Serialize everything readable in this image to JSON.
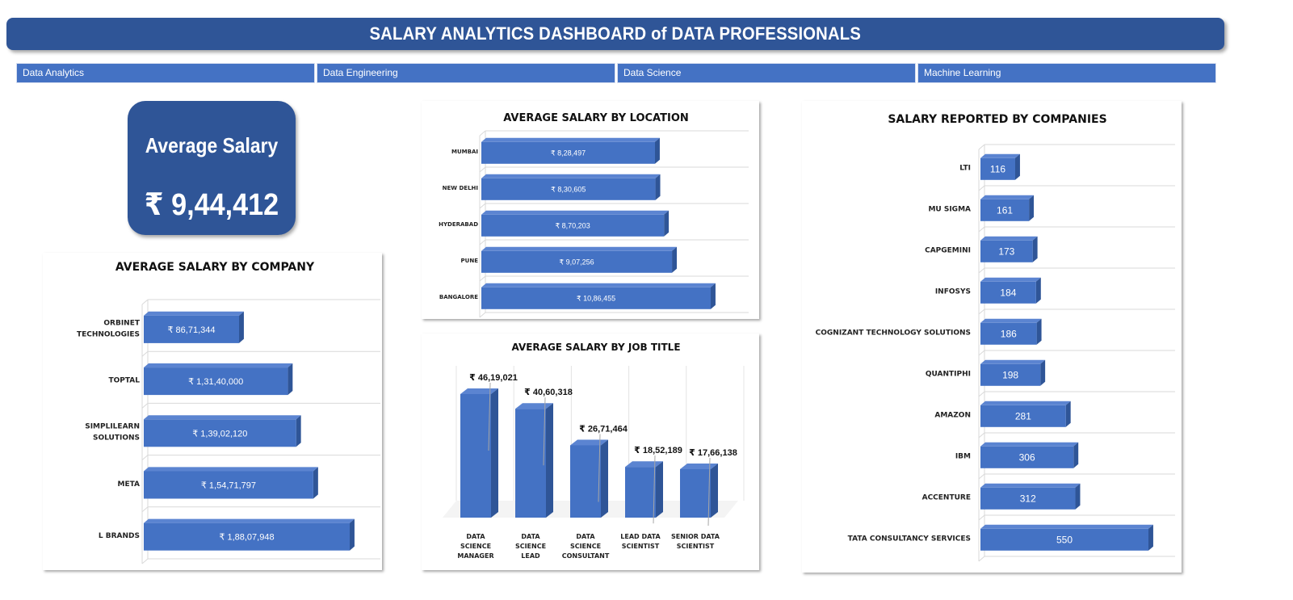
{
  "header": {
    "title": "SALARY ANALYTICS DASHBOARD of DATA PROFESSIONALS"
  },
  "slicers": [
    "Data Analytics",
    "Data Engineering",
    "Data Science",
    "Machine Learning"
  ],
  "kpi": {
    "label": "Average Salary",
    "value": "₹ 9,44,412"
  },
  "colors": {
    "bar": "#4472c4",
    "bar_top": "#5b84d1",
    "bar_side": "#2f5597",
    "header": "#2f5597"
  },
  "chart_data": [
    {
      "id": "by_company",
      "type": "bar",
      "orientation": "horizontal",
      "title": "AVERAGE SALARY BY COMPANY",
      "categories": [
        "ORBINET TECHNOLOGIES",
        "TOPTAL",
        "SIMPLILEARN SOLUTIONS",
        "META",
        "L BRANDS"
      ],
      "values": [
        8671344,
        13140000,
        13902120,
        15471797,
        18807948
      ],
      "labels": [
        "₹ 86,71,344",
        "₹ 1,31,40,000",
        "₹ 1,39,02,120",
        "₹ 1,54,71,797",
        "₹ 1,88,07,948"
      ]
    },
    {
      "id": "by_location",
      "type": "bar",
      "orientation": "horizontal",
      "title": "AVERAGE SALARY BY LOCATION",
      "categories": [
        "MUMBAI",
        "NEW DELHI",
        "HYDERABAD",
        "PUNE",
        "BANGALORE"
      ],
      "values": [
        828497,
        830605,
        870203,
        907256,
        1086455
      ],
      "labels": [
        "₹ 8,28,497",
        "₹ 8,30,605",
        "₹ 8,70,203",
        "₹ 9,07,256",
        "₹ 10,86,455"
      ]
    },
    {
      "id": "by_job_title",
      "type": "bar",
      "orientation": "vertical",
      "title": "AVERAGE SALARY BY JOB TITLE",
      "categories": [
        "DATA SCIENCE MANAGER",
        "DATA SCIENCE LEAD",
        "DATA SCIENCE CONSULTANT",
        "LEAD DATA SCIENTIST",
        "SENIOR DATA SCIENTIST"
      ],
      "values": [
        4619021,
        4060318,
        2671464,
        1852189,
        1766138
      ],
      "labels": [
        "₹ 46,19,021",
        "₹ 40,60,318",
        "₹ 26,71,464",
        "₹ 18,52,189",
        "₹ 17,66,138"
      ]
    },
    {
      "id": "by_companies_count",
      "type": "bar",
      "orientation": "horizontal",
      "title": "SALARY REPORTED BY COMPANIES",
      "categories": [
        "LTI",
        "MU SIGMA",
        "CAPGEMINI",
        "INFOSYS",
        "COGNIZANT TECHNOLOGY  SOLUTIONS",
        "QUANTIPHI",
        "AMAZON",
        "IBM",
        "ACCENTURE",
        "TATA CONSULTANCY SERVICES"
      ],
      "values": [
        116,
        161,
        173,
        184,
        186,
        198,
        281,
        306,
        312,
        550
      ],
      "labels": [
        "116",
        "161",
        "173",
        "184",
        "186",
        "198",
        "281",
        "306",
        "312",
        "550"
      ]
    }
  ]
}
